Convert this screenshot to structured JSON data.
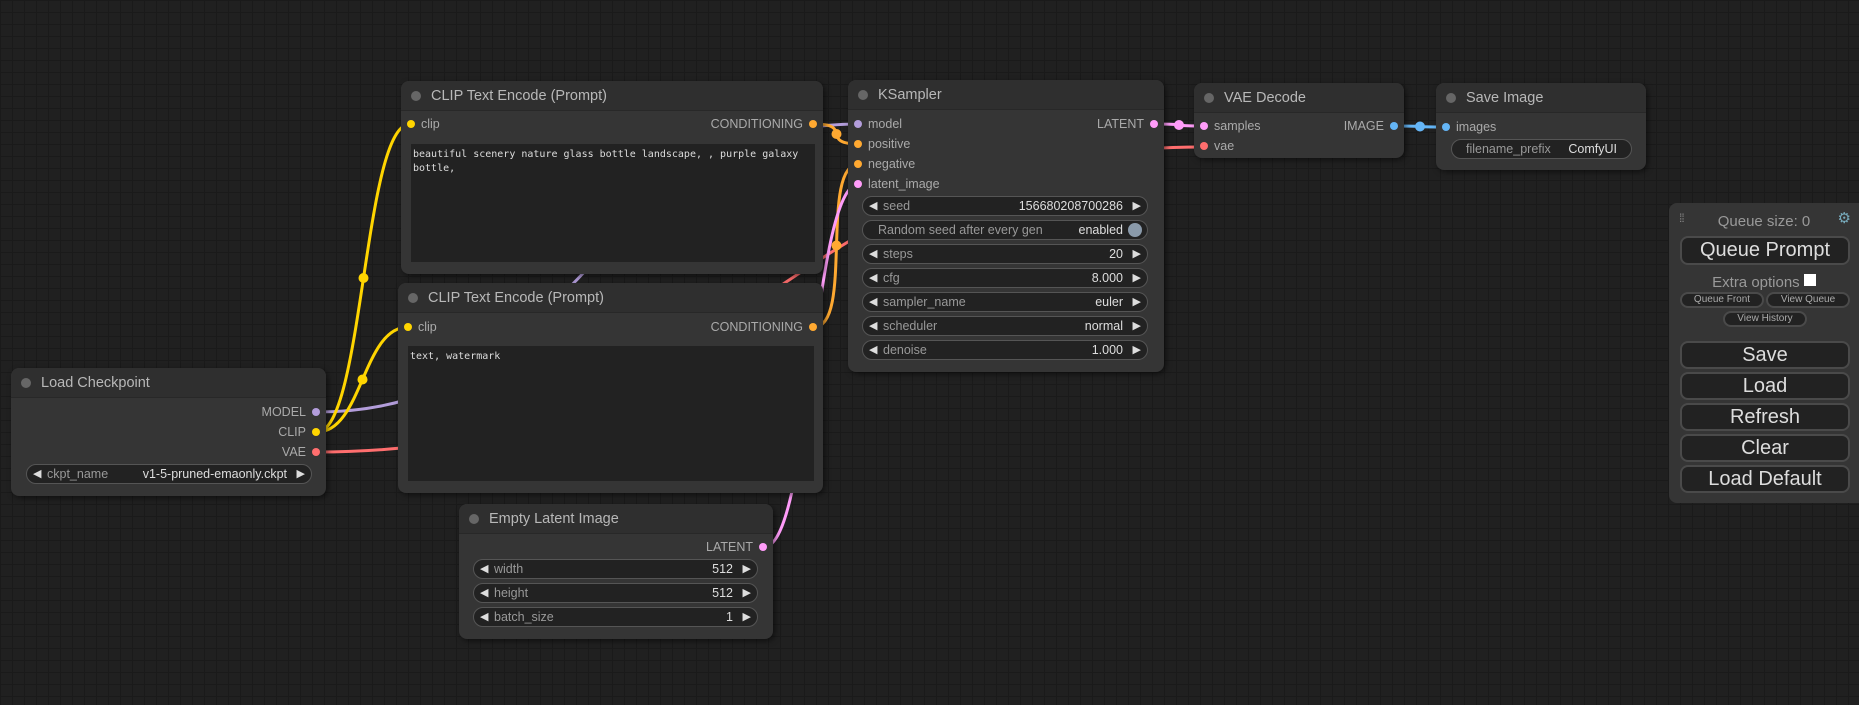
{
  "colors": {
    "model": "#b39ddb",
    "clip": "#ffd500",
    "vae": "#ff6e6e",
    "conditioning": "#ffa931",
    "latent": "#ff9cf9",
    "image": "#64b5f6"
  },
  "nodes": {
    "load_checkpoint": {
      "title": "Load Checkpoint",
      "outputs": [
        "MODEL",
        "CLIP",
        "VAE"
      ],
      "ckpt_label": "ckpt_name",
      "ckpt_value": "v1-5-pruned-emaonly.ckpt"
    },
    "clip_pos": {
      "title": "CLIP Text Encode (Prompt)",
      "input": "clip",
      "output": "CONDITIONING",
      "text": "beautiful scenery nature glass bottle landscape, , purple galaxy bottle,"
    },
    "clip_neg": {
      "title": "CLIP Text Encode (Prompt)",
      "input": "clip",
      "output": "CONDITIONING",
      "text": "text, watermark"
    },
    "empty_latent": {
      "title": "Empty Latent Image",
      "output": "LATENT",
      "widgets": [
        {
          "label": "width",
          "value": "512"
        },
        {
          "label": "height",
          "value": "512"
        },
        {
          "label": "batch_size",
          "value": "1"
        }
      ]
    },
    "ksampler": {
      "title": "KSampler",
      "inputs": [
        "model",
        "positive",
        "negative",
        "latent_image"
      ],
      "output": "LATENT",
      "seed": {
        "label": "seed",
        "value": "156680208700286"
      },
      "random_seed": {
        "label": "Random seed after every gen",
        "value": "enabled"
      },
      "widgets": [
        {
          "label": "steps",
          "value": "20"
        },
        {
          "label": "cfg",
          "value": "8.000"
        },
        {
          "label": "sampler_name",
          "value": "euler"
        },
        {
          "label": "scheduler",
          "value": "normal"
        },
        {
          "label": "denoise",
          "value": "1.000"
        }
      ]
    },
    "vae_decode": {
      "title": "VAE Decode",
      "inputs": [
        "samples",
        "vae"
      ],
      "output": "IMAGE"
    },
    "save_image": {
      "title": "Save Image",
      "input": "images",
      "prefix_label": "filename_prefix",
      "prefix_value": "ComfyUI"
    }
  },
  "panel": {
    "queue_size": "Queue size: 0",
    "queue_prompt": "Queue Prompt",
    "extra_options": "Extra options",
    "queue_front": "Queue Front",
    "view_queue": "View Queue",
    "view_history": "View History",
    "save": "Save",
    "load": "Load",
    "refresh": "Refresh",
    "clear": "Clear",
    "load_default": "Load Default"
  }
}
